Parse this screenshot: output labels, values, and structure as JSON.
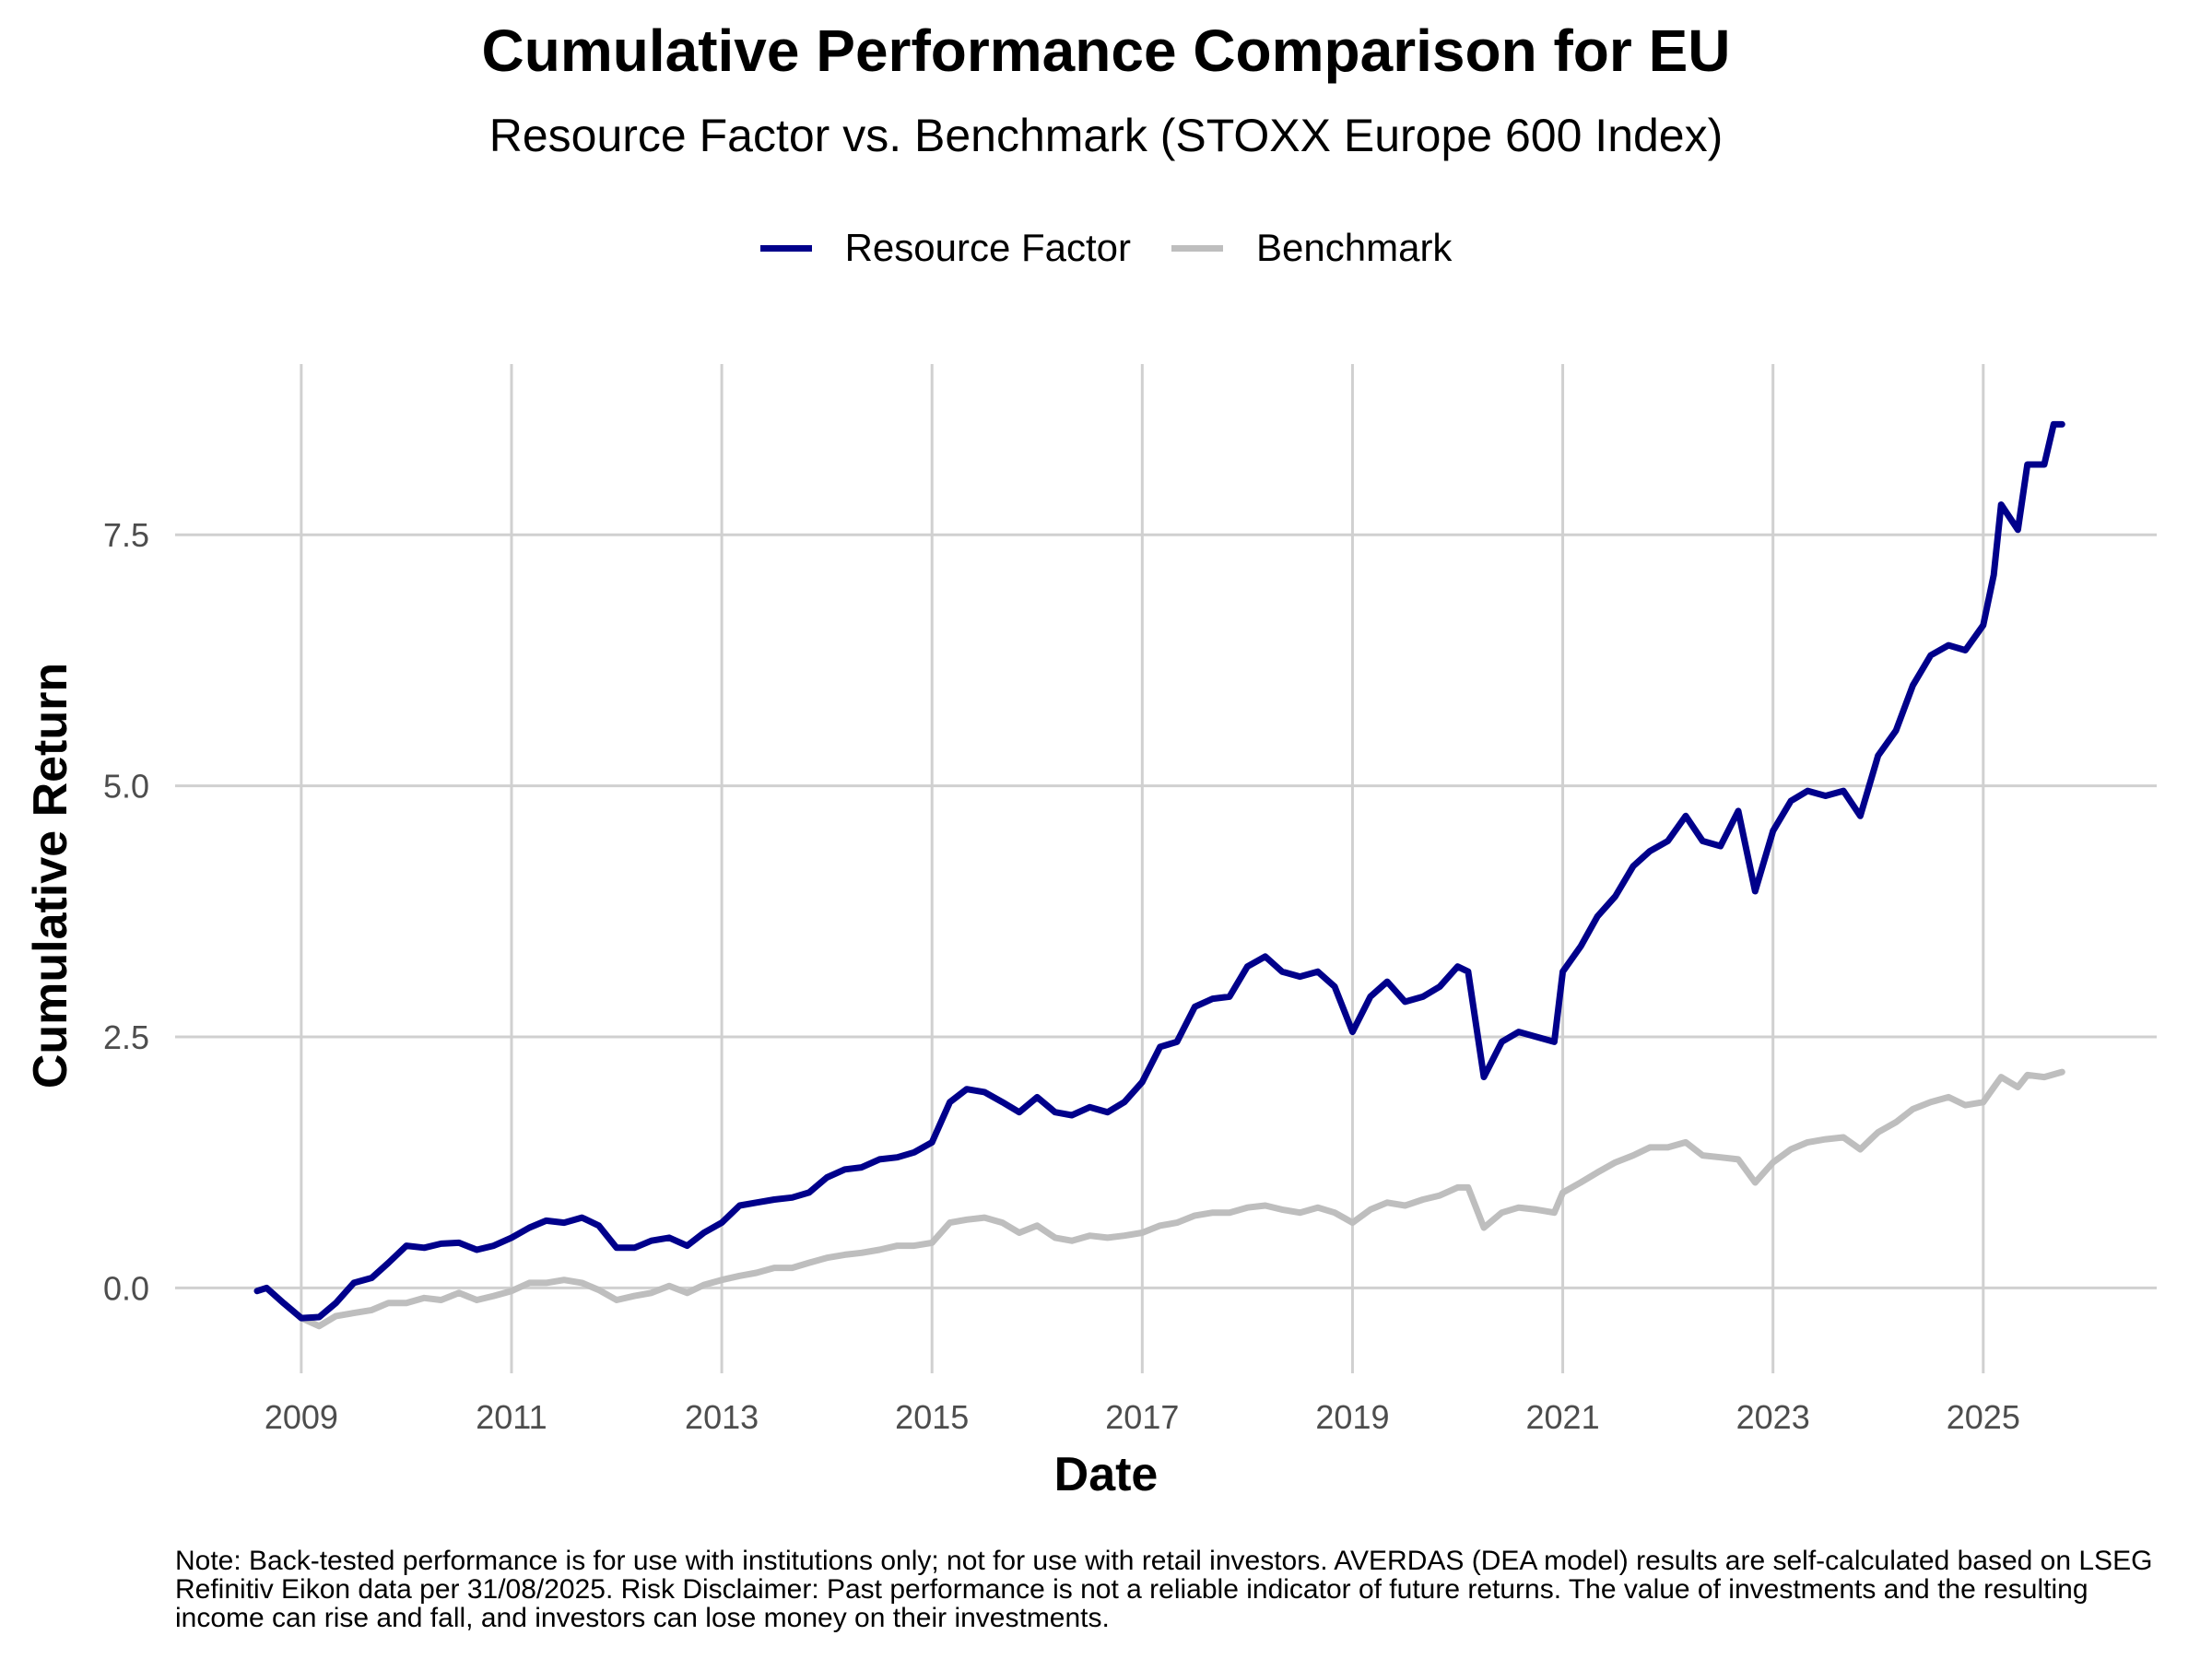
{
  "title": "Cumulative Performance Comparison for EU",
  "subtitle": "Resource Factor vs. Benchmark (STOXX Europe 600 Index)",
  "note": "Note: Back-tested performance is for use with institutions only; not for use with retail investors. AVERDAS (DEA model) results are self-calculated based on LSEG Refinitiv Eikon data per 31/08/2025. Risk Disclaimer: Past performance is not a reliable indicator of future returns. The value of investments and the resulting income can rise and fall, and investors can lose money on their investments.",
  "chart_data": {
    "type": "line",
    "xlabel": "Date",
    "ylabel": "Cumulative Return",
    "xlim": [
      2007.8,
      2026.65
    ],
    "ylim": [
      -0.85,
      9.2
    ],
    "x_ticks": [
      "2009",
      "2011",
      "2013",
      "2015",
      "2017",
      "2019",
      "2021",
      "2023",
      "2025"
    ],
    "x_tick_values": [
      2009,
      2011,
      2013,
      2015,
      2017,
      2019,
      2021,
      2023,
      2025
    ],
    "y_ticks": [
      "0.0",
      "2.5",
      "5.0",
      "7.5"
    ],
    "y_tick_values": [
      0,
      2.5,
      5.0,
      7.5
    ],
    "grid": true,
    "legend_position": "top-center",
    "series": [
      {
        "name": "Resource Factor",
        "color": "#00008B",
        "points": [
          [
            2008.58,
            -0.03
          ],
          [
            2008.67,
            0.0
          ],
          [
            2008.83,
            -0.15
          ],
          [
            2009.0,
            -0.3
          ],
          [
            2009.17,
            -0.29
          ],
          [
            2009.33,
            -0.15
          ],
          [
            2009.5,
            0.05
          ],
          [
            2009.67,
            0.1
          ],
          [
            2009.83,
            0.25
          ],
          [
            2010.0,
            0.42
          ],
          [
            2010.17,
            0.4
          ],
          [
            2010.33,
            0.44
          ],
          [
            2010.5,
            0.45
          ],
          [
            2010.67,
            0.38
          ],
          [
            2010.83,
            0.42
          ],
          [
            2011.0,
            0.5
          ],
          [
            2011.17,
            0.6
          ],
          [
            2011.33,
            0.67
          ],
          [
            2011.5,
            0.65
          ],
          [
            2011.67,
            0.7
          ],
          [
            2011.83,
            0.62
          ],
          [
            2012.0,
            0.4
          ],
          [
            2012.17,
            0.4
          ],
          [
            2012.33,
            0.47
          ],
          [
            2012.5,
            0.5
          ],
          [
            2012.67,
            0.42
          ],
          [
            2012.83,
            0.55
          ],
          [
            2013.0,
            0.65
          ],
          [
            2013.17,
            0.82
          ],
          [
            2013.33,
            0.85
          ],
          [
            2013.5,
            0.88
          ],
          [
            2013.67,
            0.9
          ],
          [
            2013.83,
            0.95
          ],
          [
            2014.0,
            1.1
          ],
          [
            2014.17,
            1.18
          ],
          [
            2014.33,
            1.2
          ],
          [
            2014.5,
            1.28
          ],
          [
            2014.67,
            1.3
          ],
          [
            2014.83,
            1.35
          ],
          [
            2015.0,
            1.45
          ],
          [
            2015.17,
            1.85
          ],
          [
            2015.33,
            1.98
          ],
          [
            2015.5,
            1.95
          ],
          [
            2015.67,
            1.85
          ],
          [
            2015.83,
            1.75
          ],
          [
            2016.0,
            1.9
          ],
          [
            2016.17,
            1.75
          ],
          [
            2016.33,
            1.72
          ],
          [
            2016.5,
            1.8
          ],
          [
            2016.67,
            1.75
          ],
          [
            2016.83,
            1.85
          ],
          [
            2017.0,
            2.05
          ],
          [
            2017.17,
            2.4
          ],
          [
            2017.33,
            2.45
          ],
          [
            2017.5,
            2.8
          ],
          [
            2017.67,
            2.88
          ],
          [
            2017.83,
            2.9
          ],
          [
            2018.0,
            3.2
          ],
          [
            2018.17,
            3.3
          ],
          [
            2018.33,
            3.15
          ],
          [
            2018.5,
            3.1
          ],
          [
            2018.67,
            3.15
          ],
          [
            2018.83,
            3.0
          ],
          [
            2019.0,
            2.55
          ],
          [
            2019.17,
            2.9
          ],
          [
            2019.33,
            3.05
          ],
          [
            2019.5,
            2.85
          ],
          [
            2019.67,
            2.9
          ],
          [
            2019.83,
            3.0
          ],
          [
            2020.0,
            3.2
          ],
          [
            2020.1,
            3.15
          ],
          [
            2020.25,
            2.1
          ],
          [
            2020.42,
            2.45
          ],
          [
            2020.58,
            2.55
          ],
          [
            2020.75,
            2.5
          ],
          [
            2020.92,
            2.45
          ],
          [
            2021.0,
            3.15
          ],
          [
            2021.17,
            3.4
          ],
          [
            2021.33,
            3.7
          ],
          [
            2021.5,
            3.9
          ],
          [
            2021.67,
            4.2
          ],
          [
            2021.83,
            4.35
          ],
          [
            2022.0,
            4.45
          ],
          [
            2022.17,
            4.7
          ],
          [
            2022.33,
            4.45
          ],
          [
            2022.5,
            4.4
          ],
          [
            2022.67,
            4.75
          ],
          [
            2022.83,
            3.95
          ],
          [
            2023.0,
            4.55
          ],
          [
            2023.17,
            4.85
          ],
          [
            2023.33,
            4.95
          ],
          [
            2023.5,
            4.9
          ],
          [
            2023.67,
            4.95
          ],
          [
            2023.83,
            4.7
          ],
          [
            2024.0,
            5.3
          ],
          [
            2024.17,
            5.55
          ],
          [
            2024.33,
            6.0
          ],
          [
            2024.5,
            6.3
          ],
          [
            2024.67,
            6.4
          ],
          [
            2024.83,
            6.35
          ],
          [
            2025.0,
            6.6
          ],
          [
            2025.1,
            7.1
          ],
          [
            2025.17,
            7.8
          ],
          [
            2025.33,
            7.55
          ],
          [
            2025.42,
            8.2
          ],
          [
            2025.58,
            8.2
          ],
          [
            2025.67,
            8.6
          ],
          [
            2025.75,
            8.6
          ]
        ]
      },
      {
        "name": "Benchmark",
        "color": "#BEBEBE",
        "points": [
          [
            2008.58,
            -0.03
          ],
          [
            2008.67,
            0.0
          ],
          [
            2008.83,
            -0.15
          ],
          [
            2009.0,
            -0.3
          ],
          [
            2009.17,
            -0.38
          ],
          [
            2009.33,
            -0.28
          ],
          [
            2009.5,
            -0.25
          ],
          [
            2009.67,
            -0.22
          ],
          [
            2009.83,
            -0.15
          ],
          [
            2010.0,
            -0.15
          ],
          [
            2010.17,
            -0.1
          ],
          [
            2010.33,
            -0.12
          ],
          [
            2010.5,
            -0.05
          ],
          [
            2010.67,
            -0.12
          ],
          [
            2010.83,
            -0.08
          ],
          [
            2011.0,
            -0.03
          ],
          [
            2011.17,
            0.05
          ],
          [
            2011.33,
            0.05
          ],
          [
            2011.5,
            0.08
          ],
          [
            2011.67,
            0.05
          ],
          [
            2011.83,
            -0.02
          ],
          [
            2012.0,
            -0.12
          ],
          [
            2012.17,
            -0.08
          ],
          [
            2012.33,
            -0.05
          ],
          [
            2012.5,
            0.02
          ],
          [
            2012.67,
            -0.05
          ],
          [
            2012.83,
            0.03
          ],
          [
            2013.0,
            0.08
          ],
          [
            2013.17,
            0.12
          ],
          [
            2013.33,
            0.15
          ],
          [
            2013.5,
            0.2
          ],
          [
            2013.67,
            0.2
          ],
          [
            2013.83,
            0.25
          ],
          [
            2014.0,
            0.3
          ],
          [
            2014.17,
            0.33
          ],
          [
            2014.33,
            0.35
          ],
          [
            2014.5,
            0.38
          ],
          [
            2014.67,
            0.42
          ],
          [
            2014.83,
            0.42
          ],
          [
            2015.0,
            0.45
          ],
          [
            2015.17,
            0.65
          ],
          [
            2015.33,
            0.68
          ],
          [
            2015.5,
            0.7
          ],
          [
            2015.67,
            0.65
          ],
          [
            2015.83,
            0.55
          ],
          [
            2016.0,
            0.62
          ],
          [
            2016.17,
            0.5
          ],
          [
            2016.33,
            0.47
          ],
          [
            2016.5,
            0.52
          ],
          [
            2016.67,
            0.5
          ],
          [
            2016.83,
            0.52
          ],
          [
            2017.0,
            0.55
          ],
          [
            2017.17,
            0.62
          ],
          [
            2017.33,
            0.65
          ],
          [
            2017.5,
            0.72
          ],
          [
            2017.67,
            0.75
          ],
          [
            2017.83,
            0.75
          ],
          [
            2018.0,
            0.8
          ],
          [
            2018.17,
            0.82
          ],
          [
            2018.33,
            0.78
          ],
          [
            2018.5,
            0.75
          ],
          [
            2018.67,
            0.8
          ],
          [
            2018.83,
            0.75
          ],
          [
            2019.0,
            0.65
          ],
          [
            2019.17,
            0.78
          ],
          [
            2019.33,
            0.85
          ],
          [
            2019.5,
            0.82
          ],
          [
            2019.67,
            0.88
          ],
          [
            2019.83,
            0.92
          ],
          [
            2020.0,
            1.0
          ],
          [
            2020.1,
            1.0
          ],
          [
            2020.25,
            0.6
          ],
          [
            2020.42,
            0.75
          ],
          [
            2020.58,
            0.8
          ],
          [
            2020.75,
            0.78
          ],
          [
            2020.92,
            0.75
          ],
          [
            2021.0,
            0.95
          ],
          [
            2021.17,
            1.05
          ],
          [
            2021.33,
            1.15
          ],
          [
            2021.5,
            1.25
          ],
          [
            2021.67,
            1.32
          ],
          [
            2021.83,
            1.4
          ],
          [
            2022.0,
            1.4
          ],
          [
            2022.17,
            1.45
          ],
          [
            2022.33,
            1.32
          ],
          [
            2022.5,
            1.3
          ],
          [
            2022.67,
            1.28
          ],
          [
            2022.83,
            1.05
          ],
          [
            2023.0,
            1.25
          ],
          [
            2023.17,
            1.38
          ],
          [
            2023.33,
            1.45
          ],
          [
            2023.5,
            1.48
          ],
          [
            2023.67,
            1.5
          ],
          [
            2023.83,
            1.38
          ],
          [
            2024.0,
            1.55
          ],
          [
            2024.17,
            1.65
          ],
          [
            2024.33,
            1.78
          ],
          [
            2024.5,
            1.85
          ],
          [
            2024.67,
            1.9
          ],
          [
            2024.83,
            1.82
          ],
          [
            2025.0,
            1.85
          ],
          [
            2025.17,
            2.1
          ],
          [
            2025.33,
            2.0
          ],
          [
            2025.42,
            2.12
          ],
          [
            2025.58,
            2.1
          ],
          [
            2025.75,
            2.15
          ]
        ]
      }
    ]
  }
}
